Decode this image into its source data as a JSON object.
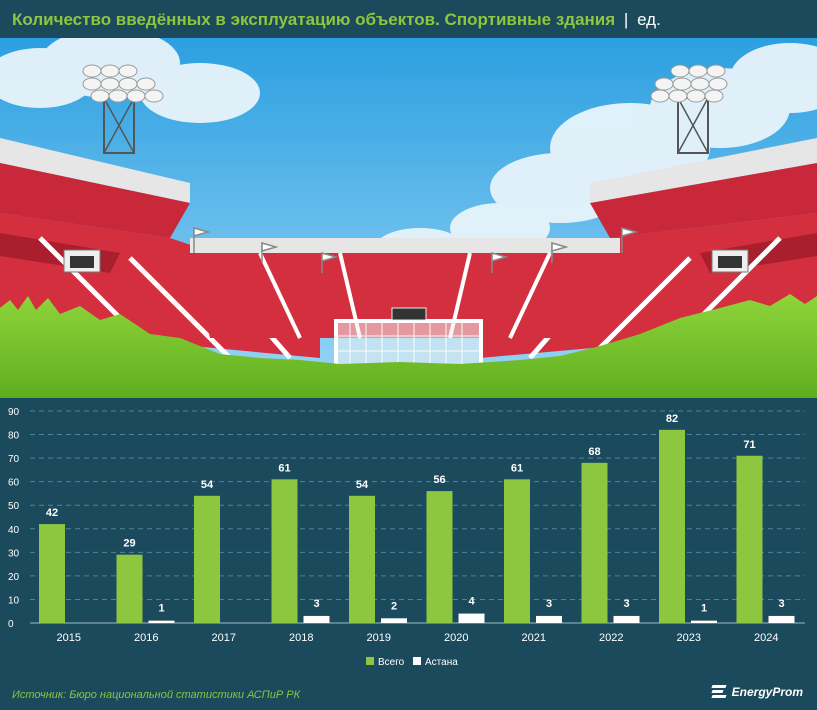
{
  "header": {
    "title": "Количество введённых в эксплуатацию объектов. Спортивные здания",
    "separator": "|",
    "unit": "ед."
  },
  "colors": {
    "background": "#1a4a5c",
    "series_total": "#8dc63f",
    "series_astana": "#ffffff",
    "title": "#8dc63f"
  },
  "chart_data": {
    "type": "bar",
    "categories": [
      "2015",
      "2016",
      "2017",
      "2018",
      "2019",
      "2020",
      "2021",
      "2022",
      "2023",
      "2024"
    ],
    "series": [
      {
        "name": "Всего",
        "values": [
          42,
          29,
          54,
          61,
          54,
          56,
          61,
          68,
          82,
          71
        ],
        "labels": [
          "42",
          "29",
          "54",
          "61",
          "54",
          "56",
          "61",
          "68",
          "82",
          "71"
        ]
      },
      {
        "name": "Астана",
        "values": [
          0,
          1,
          0,
          3,
          2,
          4,
          3,
          3,
          1,
          3
        ],
        "labels": [
          "",
          "1",
          "",
          "3",
          "2",
          "4",
          "3",
          "3",
          "1",
          "3"
        ]
      }
    ],
    "yticks": [
      "0",
      "10",
      "20",
      "30",
      "40",
      "50",
      "60",
      "70",
      "80",
      "90"
    ],
    "ylim": [
      0,
      90
    ],
    "grid": true,
    "legend_position": "bottom-center"
  },
  "footer": {
    "source": "Источник: Бюро национальной статистики АСПиР РК",
    "logo": "EnergyProm"
  }
}
